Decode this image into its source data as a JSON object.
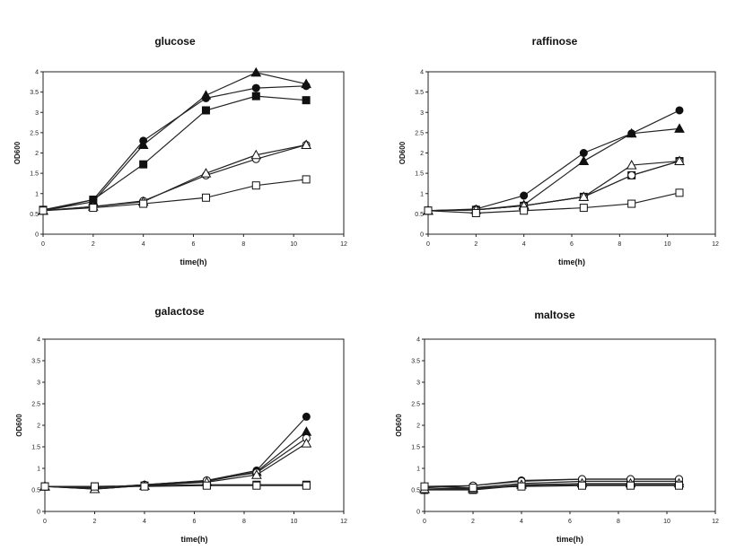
{
  "chart_data": [
    {
      "type": "line",
      "title": "glucose",
      "xlabel": "time(h)",
      "ylabel": "OD600",
      "xlim": [
        0,
        12
      ],
      "ylim": [
        0,
        4
      ],
      "xticks": [
        0,
        2,
        4,
        6,
        8,
        10,
        12
      ],
      "yticks": [
        0,
        0.5,
        1,
        1.5,
        2,
        2.5,
        3,
        3.5,
        4
      ],
      "grid": false,
      "x": [
        0,
        2,
        4,
        6.5,
        8.5,
        10.5
      ],
      "series": [
        {
          "marker": "filled-circle",
          "values": [
            0.58,
            0.85,
            2.3,
            3.35,
            3.6,
            3.65
          ]
        },
        {
          "marker": "filled-triangle",
          "values": [
            0.58,
            0.8,
            2.2,
            3.42,
            3.98,
            3.7
          ]
        },
        {
          "marker": "filled-square",
          "values": [
            0.6,
            0.85,
            1.72,
            3.05,
            3.4,
            3.3
          ]
        },
        {
          "marker": "open-circle",
          "values": [
            0.58,
            0.68,
            0.82,
            1.45,
            1.85,
            2.2
          ]
        },
        {
          "marker": "open-triangle",
          "values": [
            0.58,
            0.68,
            0.8,
            1.5,
            1.95,
            2.2
          ]
        },
        {
          "marker": "open-square",
          "values": [
            0.58,
            0.65,
            0.75,
            0.9,
            1.2,
            1.35
          ]
        }
      ]
    },
    {
      "type": "line",
      "title": "raffinose",
      "xlabel": "time(h)",
      "ylabel": "OD600",
      "xlim": [
        0,
        12
      ],
      "ylim": [
        0,
        4
      ],
      "xticks": [
        0,
        2,
        4,
        6,
        8,
        10,
        12
      ],
      "yticks": [
        0,
        0.5,
        1,
        1.5,
        2,
        2.5,
        3,
        3.5,
        4
      ],
      "grid": false,
      "x": [
        0,
        2,
        4,
        6.5,
        8.5,
        10.5
      ],
      "series": [
        {
          "marker": "filled-circle",
          "values": [
            0.58,
            0.62,
            0.95,
            2.0,
            2.48,
            3.05
          ]
        },
        {
          "marker": "filled-triangle",
          "values": [
            0.58,
            0.6,
            0.72,
            1.8,
            2.48,
            2.6
          ]
        },
        {
          "marker": "filled-square",
          "values": [
            0.58,
            0.6,
            0.7,
            0.92,
            1.45,
            1.8
          ]
        },
        {
          "marker": "open-circle",
          "values": [
            0.58,
            0.6,
            0.7,
            0.92,
            1.45,
            1.8
          ]
        },
        {
          "marker": "open-triangle",
          "values": [
            0.58,
            0.6,
            0.7,
            0.92,
            1.7,
            1.8
          ]
        },
        {
          "marker": "open-square",
          "values": [
            0.58,
            0.52,
            0.58,
            0.65,
            0.75,
            1.02
          ]
        }
      ]
    },
    {
      "type": "line",
      "title": "galactose",
      "xlabel": "time(h)",
      "ylabel": "OD600",
      "xlim": [
        0,
        12
      ],
      "ylim": [
        0,
        4
      ],
      "xticks": [
        0,
        2,
        4,
        6,
        8,
        10,
        12
      ],
      "yticks": [
        0,
        0.5,
        1,
        1.5,
        2,
        2.5,
        3,
        3.5,
        4
      ],
      "grid": false,
      "x": [
        0,
        2,
        4,
        6.5,
        8.5,
        10.5
      ],
      "series": [
        {
          "marker": "filled-circle",
          "values": [
            0.58,
            0.55,
            0.62,
            0.72,
            0.95,
            2.2
          ]
        },
        {
          "marker": "filled-triangle",
          "values": [
            0.58,
            0.52,
            0.6,
            0.7,
            0.92,
            1.85
          ]
        },
        {
          "marker": "filled-square",
          "values": [
            0.58,
            0.58,
            0.6,
            0.62,
            0.62,
            0.62
          ]
        },
        {
          "marker": "open-circle",
          "values": [
            0.58,
            0.55,
            0.62,
            0.72,
            0.9,
            1.7
          ]
        },
        {
          "marker": "open-triangle",
          "values": [
            0.58,
            0.52,
            0.6,
            0.68,
            0.85,
            1.58
          ]
        },
        {
          "marker": "open-square",
          "values": [
            0.58,
            0.58,
            0.58,
            0.6,
            0.6,
            0.6
          ]
        }
      ]
    },
    {
      "type": "line",
      "title": "maltose",
      "xlabel": "time(h)",
      "ylabel": "OD600",
      "xlim": [
        0,
        12
      ],
      "ylim": [
        0,
        4
      ],
      "xticks": [
        0,
        2,
        4,
        6,
        8,
        10,
        12
      ],
      "yticks": [
        0,
        0.5,
        1,
        1.5,
        2,
        2.5,
        3,
        3.5,
        4
      ],
      "grid": false,
      "x": [
        0,
        2,
        4,
        6.5,
        8.5,
        10.5
      ],
      "series": [
        {
          "marker": "filled-circle",
          "values": [
            0.55,
            0.6,
            0.72,
            0.75,
            0.75,
            0.75
          ]
        },
        {
          "marker": "filled-triangle",
          "values": [
            0.52,
            0.55,
            0.65,
            0.7,
            0.7,
            0.7
          ]
        },
        {
          "marker": "filled-square",
          "values": [
            0.5,
            0.5,
            0.6,
            0.62,
            0.62,
            0.62
          ]
        },
        {
          "marker": "open-circle",
          "values": [
            0.58,
            0.6,
            0.7,
            0.75,
            0.75,
            0.75
          ]
        },
        {
          "marker": "open-triangle",
          "values": [
            0.52,
            0.52,
            0.62,
            0.65,
            0.65,
            0.65
          ]
        },
        {
          "marker": "open-square",
          "values": [
            0.58,
            0.55,
            0.58,
            0.6,
            0.6,
            0.6
          ]
        }
      ]
    }
  ]
}
